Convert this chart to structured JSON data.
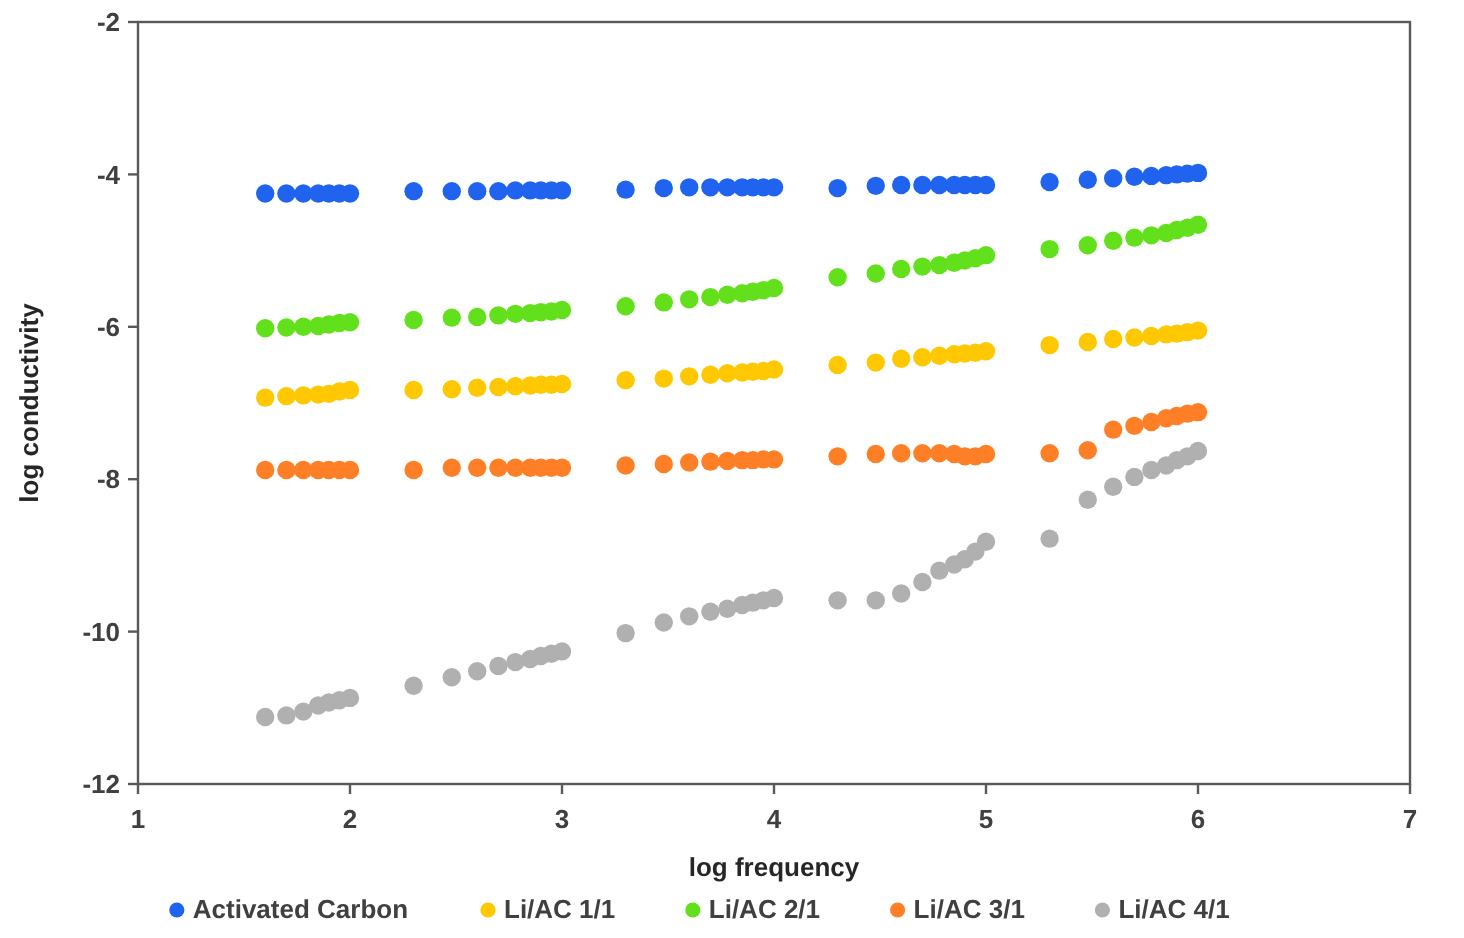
{
  "chart_data": {
    "type": "scatter",
    "xlabel": "log frequency",
    "ylabel": "log conductivity",
    "xlim": [
      1,
      7
    ],
    "xticks": [
      1,
      2,
      3,
      4,
      5,
      6,
      7
    ],
    "ylim": [
      -12,
      -2
    ],
    "yticks": [
      -12,
      -10,
      -8,
      -6,
      -4,
      -2
    ],
    "grid": false,
    "legend": "bottom",
    "marker": "circle",
    "x": [
      1.6,
      1.7,
      1.78,
      1.85,
      1.9,
      1.95,
      2.0,
      2.3,
      2.48,
      2.6,
      2.7,
      2.78,
      2.85,
      2.9,
      2.95,
      3.0,
      3.3,
      3.48,
      3.6,
      3.7,
      3.78,
      3.85,
      3.9,
      3.95,
      4.0,
      4.3,
      4.48,
      4.6,
      4.7,
      4.78,
      4.85,
      4.9,
      4.95,
      5.0,
      5.3,
      5.48,
      5.6,
      5.7,
      5.78,
      5.85,
      5.9,
      5.95,
      6.0
    ],
    "series": [
      {
        "name": "Activated Carbon",
        "color": "#1f63ef",
        "values": [
          -4.25,
          -4.25,
          -4.25,
          -4.25,
          -4.25,
          -4.25,
          -4.25,
          -4.22,
          -4.22,
          -4.22,
          -4.22,
          -4.21,
          -4.21,
          -4.21,
          -4.21,
          -4.21,
          -4.2,
          -4.18,
          -4.17,
          -4.17,
          -4.17,
          -4.17,
          -4.17,
          -4.17,
          -4.17,
          -4.18,
          -4.15,
          -4.14,
          -4.14,
          -4.14,
          -4.14,
          -4.14,
          -4.14,
          -4.14,
          -4.1,
          -4.07,
          -4.05,
          -4.03,
          -4.02,
          -4.01,
          -4.0,
          -3.99,
          -3.98
        ]
      },
      {
        "name": "Li/AC 1/1",
        "color": "#ffc800",
        "values": [
          -6.93,
          -6.91,
          -6.9,
          -6.89,
          -6.88,
          -6.85,
          -6.83,
          -6.83,
          -6.82,
          -6.8,
          -6.79,
          -6.78,
          -6.77,
          -6.76,
          -6.76,
          -6.75,
          -6.7,
          -6.68,
          -6.65,
          -6.63,
          -6.61,
          -6.6,
          -6.59,
          -6.58,
          -6.56,
          -6.5,
          -6.47,
          -6.42,
          -6.4,
          -6.38,
          -6.36,
          -6.35,
          -6.34,
          -6.32,
          -6.24,
          -6.2,
          -6.16,
          -6.14,
          -6.12,
          -6.1,
          -6.09,
          -6.07,
          -6.05
        ]
      },
      {
        "name": "Li/AC 2/1",
        "color": "#62e01c",
        "values": [
          -6.02,
          -6.01,
          -6.0,
          -5.99,
          -5.97,
          -5.95,
          -5.94,
          -5.91,
          -5.88,
          -5.87,
          -5.85,
          -5.83,
          -5.82,
          -5.81,
          -5.8,
          -5.78,
          -5.73,
          -5.68,
          -5.64,
          -5.61,
          -5.58,
          -5.56,
          -5.54,
          -5.52,
          -5.49,
          -5.35,
          -5.3,
          -5.24,
          -5.21,
          -5.19,
          -5.16,
          -5.13,
          -5.1,
          -5.06,
          -4.98,
          -4.93,
          -4.87,
          -4.83,
          -4.8,
          -4.77,
          -4.73,
          -4.7,
          -4.66
        ]
      },
      {
        "name": "Li/AC 3/1",
        "color": "#ff7f27",
        "values": [
          -7.88,
          -7.88,
          -7.88,
          -7.88,
          -7.88,
          -7.88,
          -7.88,
          -7.88,
          -7.85,
          -7.85,
          -7.85,
          -7.85,
          -7.85,
          -7.85,
          -7.85,
          -7.85,
          -7.82,
          -7.8,
          -7.78,
          -7.77,
          -7.76,
          -7.75,
          -7.75,
          -7.74,
          -7.74,
          -7.7,
          -7.67,
          -7.66,
          -7.66,
          -7.66,
          -7.67,
          -7.7,
          -7.7,
          -7.67,
          -7.66,
          -7.62,
          -7.35,
          -7.3,
          -7.25,
          -7.2,
          -7.17,
          -7.14,
          -7.12
        ]
      },
      {
        "name": "Li/AC 4/1",
        "color": "#b0b0b0",
        "values": [
          -11.12,
          -11.1,
          -11.05,
          -10.97,
          -10.93,
          -10.9,
          -10.87,
          -10.71,
          -10.6,
          -10.52,
          -10.45,
          -10.4,
          -10.36,
          -10.32,
          -10.29,
          -10.26,
          -10.02,
          -9.88,
          -9.8,
          -9.74,
          -9.7,
          -9.65,
          -9.62,
          -9.59,
          -9.56,
          -9.59,
          -9.59,
          -9.5,
          -9.35,
          -9.2,
          -9.12,
          -9.05,
          -8.95,
          -8.82,
          -8.78,
          -8.27,
          -8.1,
          -7.97,
          -7.88,
          -7.82,
          -7.75,
          -7.7,
          -7.63
        ]
      }
    ]
  }
}
